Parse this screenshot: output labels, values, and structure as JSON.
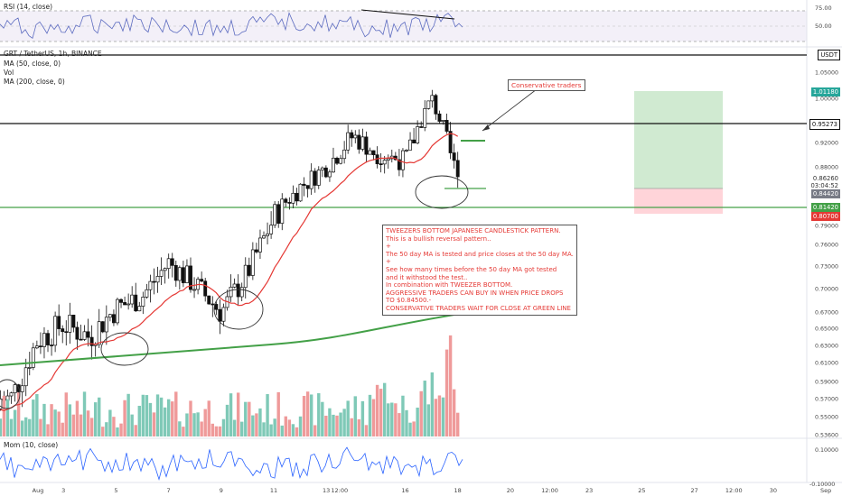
{
  "symbol_title": "GRT / TetherUS, 1h, BINANCE",
  "indicators": {
    "ma50": "MA (50, close, 0)",
    "vol": "Vol",
    "ma200": "MA (200, close, 0)",
    "rsi": "RSI (14, close)",
    "mom": "Mom (10, close)"
  },
  "quote_currency": "USDT",
  "price_scale": [
    "1.05000",
    "1.00000",
    "0.95000",
    "0.92000",
    "0.88000",
    "0.85000",
    "0.84000",
    "0.81000",
    "0.79000",
    "0.76000",
    "0.73000",
    "0.70000",
    "0.67000",
    "0.65000",
    "0.63000",
    "0.61000",
    "0.59000",
    "0.57000",
    "0.55000",
    "0.53600"
  ],
  "rsi_scale": [
    "75.00",
    "50.00",
    "25.00"
  ],
  "mom_scale": [
    "0.10000",
    "0.00000",
    "-0.10000"
  ],
  "price_tags": {
    "target": "1.01180",
    "black_line": "0.95273",
    "last_price": "0.86260",
    "countdown": "03:04:52",
    "entry": "0.84420",
    "green_line": "0.81420",
    "stop": "0.80700"
  },
  "time_axis": [
    "Aug",
    "3",
    "5",
    "7",
    "9",
    "11",
    "13",
    "12:00",
    "16",
    "18",
    "20",
    "12:00",
    "23",
    "25",
    "27",
    "12:00",
    "30",
    "Sep"
  ],
  "annotations": {
    "callout": "Conservative traders",
    "main_text": "TWEEZERS BOTTOM JAPANESE CANDLESTICK PATTERN.\nThis is a bullish reversal pattern..\n+\nThe 50 day MA is tested and price closes at the 50 day MA.\n+\nSee how many times before the 50 day MA got tested\nand it withstood the test..\nIn combination with TWEEZER BOTTOM.\nAGGRESSIVE TRADERS CAN BUY IN WHEN PRICE DROPS\nTO $0.84500.-\nCONSERVATIVE TRADERS WAIT FOR CLOSE AT GREEN LINE"
  },
  "colors": {
    "bull_volume": "#7fc9b7",
    "bear_volume": "#ef9a9a",
    "ma50": "#e53935",
    "ma200": "#43a047",
    "rsi_line": "#5c6bc0",
    "mom_line": "#2962ff",
    "target_zone": "#c8e6c9",
    "stop_zone": "#ffcdd2",
    "annotation_text": "#e53935"
  },
  "chart_data": {
    "type": "candlestick",
    "title": "GRT / TetherUS, 1h, BINANCE",
    "x_range": [
      "Aug 1",
      "Sep 1"
    ],
    "y_range": [
      0.536,
      1.05
    ],
    "price_path": [
      [
        "Aug 1",
        0.57
      ],
      [
        "Aug 2",
        0.635
      ],
      [
        "Aug 3",
        0.655
      ],
      [
        "Aug 4",
        0.64
      ],
      [
        "Aug 5",
        0.675
      ],
      [
        "Aug 6",
        0.69
      ],
      [
        "Aug 7",
        0.735
      ],
      [
        "Aug 8",
        0.705
      ],
      [
        "Aug 9",
        0.67
      ],
      [
        "Aug 10",
        0.72
      ],
      [
        "Aug 11",
        0.8
      ],
      [
        "Aug 12",
        0.845
      ],
      [
        "Aug 13",
        0.88
      ],
      [
        "Aug 14",
        0.93
      ],
      [
        "Aug 15",
        0.9
      ],
      [
        "Aug 16",
        0.89
      ],
      [
        "Aug 17",
        1.0
      ],
      [
        "Aug 18",
        0.8626
      ]
    ],
    "rsi_range": [
      25,
      75
    ],
    "mom_range": [
      -0.1,
      0.1
    ],
    "levels": {
      "target": 1.0118,
      "resistance": 0.95273,
      "entry": 0.8442,
      "green_line": 0.8142,
      "stop": 0.807
    }
  }
}
